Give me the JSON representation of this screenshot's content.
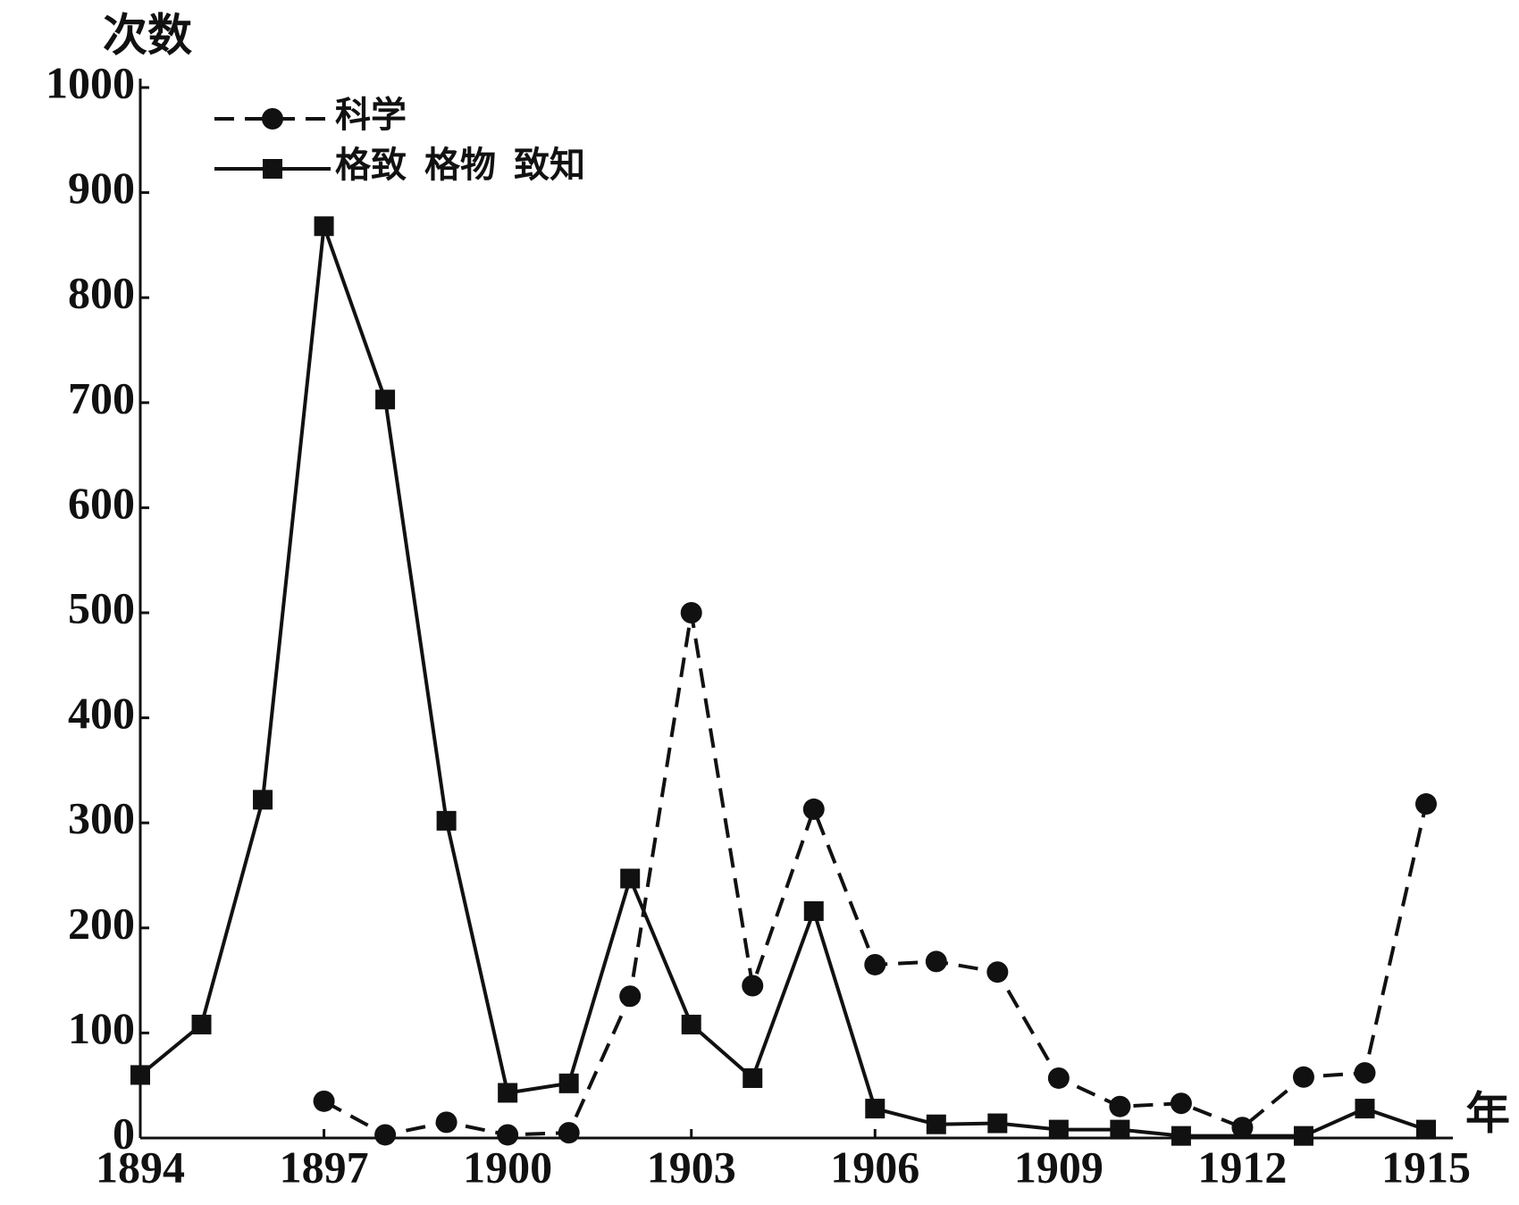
{
  "chart_data": {
    "type": "line",
    "y_label": "次数",
    "x_label": "年",
    "xlim": [
      1894,
      1915
    ],
    "xticks": [
      1894,
      1897,
      1900,
      1903,
      1906,
      1909,
      1912,
      1915
    ],
    "ylim": [
      0,
      1000
    ],
    "yticks": [
      0,
      100,
      200,
      300,
      400,
      500,
      600,
      700,
      800,
      900,
      1000
    ],
    "series": [
      {
        "name": "科学",
        "color": "#111111",
        "dashed": true,
        "marker": "circle",
        "x": [
          1897,
          1898,
          1899,
          1900,
          1901,
          1902,
          1903,
          1904,
          1905,
          1906,
          1907,
          1908,
          1909,
          1910,
          1911,
          1912,
          1913,
          1914,
          1915
        ],
        "values": [
          35,
          3,
          15,
          3,
          5,
          135,
          500,
          145,
          313,
          165,
          168,
          158,
          57,
          30,
          33,
          10,
          58,
          62,
          318
        ]
      },
      {
        "name": "格致  格物  致知",
        "color": "#111111",
        "dashed": false,
        "marker": "square",
        "x": [
          1894,
          1895,
          1896,
          1897,
          1898,
          1899,
          1900,
          1901,
          1902,
          1903,
          1904,
          1905,
          1906,
          1907,
          1908,
          1909,
          1910,
          1911,
          1913,
          1914,
          1915
        ],
        "values": [
          60,
          108,
          322,
          868,
          703,
          302,
          43,
          52,
          247,
          108,
          57,
          216,
          28,
          13,
          14,
          8,
          8,
          2,
          2,
          28,
          8
        ]
      }
    ]
  }
}
